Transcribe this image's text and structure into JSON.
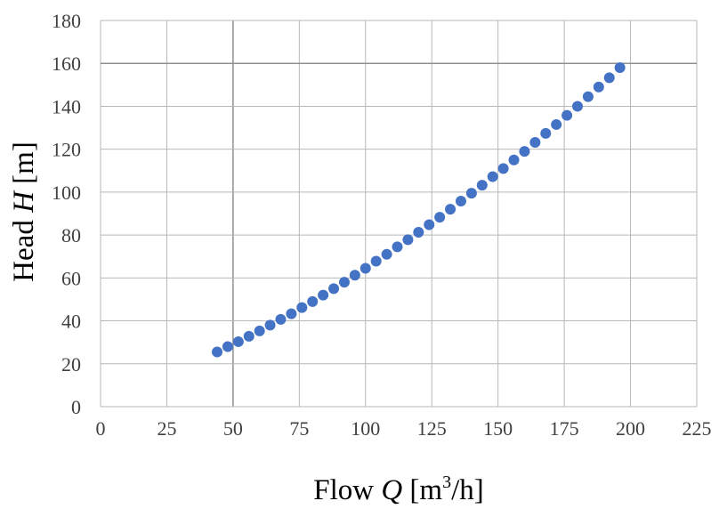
{
  "chart_data": {
    "type": "scatter",
    "title": "",
    "xlabel": "Flow Q [m³/h]",
    "ylabel": "Head H [m]",
    "xlabel_parts": {
      "prefix": "Flow ",
      "var": "Q",
      "unit_open": " [m",
      "unit_sup": "3",
      "unit_close": "/h]"
    },
    "ylabel_parts": {
      "prefix": "Head ",
      "var": "H",
      "unit": " [m]"
    },
    "xlim": [
      0,
      225
    ],
    "ylim": [
      0,
      180
    ],
    "xticks": [
      0,
      25,
      50,
      75,
      100,
      125,
      150,
      175,
      200,
      225
    ],
    "yticks": [
      0,
      20,
      40,
      60,
      80,
      100,
      120,
      140,
      160,
      180
    ],
    "grid": true,
    "legend": "none",
    "colors": {
      "series": "#4472c4",
      "grid": "#b7b7b7"
    },
    "series": [
      {
        "x": [
          44,
          48,
          52,
          56,
          60,
          64,
          68,
          72,
          76,
          80,
          84,
          88,
          92,
          96,
          100,
          104,
          108,
          112,
          116,
          120,
          124,
          128,
          132,
          136,
          140,
          144,
          148,
          152,
          156,
          160,
          164,
          168,
          172,
          176,
          180,
          184,
          188,
          192,
          196
        ],
        "y": [
          25.5,
          28,
          30.3,
          32.8,
          35.3,
          38,
          40.7,
          43.3,
          46.2,
          49,
          52,
          55,
          58,
          61.3,
          64.5,
          67.8,
          71,
          74.5,
          77.8,
          81.3,
          84.8,
          88.3,
          92,
          95.8,
          99.5,
          103.2,
          107.2,
          111,
          115,
          119,
          123.2,
          127.4,
          131.5,
          135.8,
          140,
          144.5,
          149,
          153.3,
          158
        ]
      }
    ]
  }
}
